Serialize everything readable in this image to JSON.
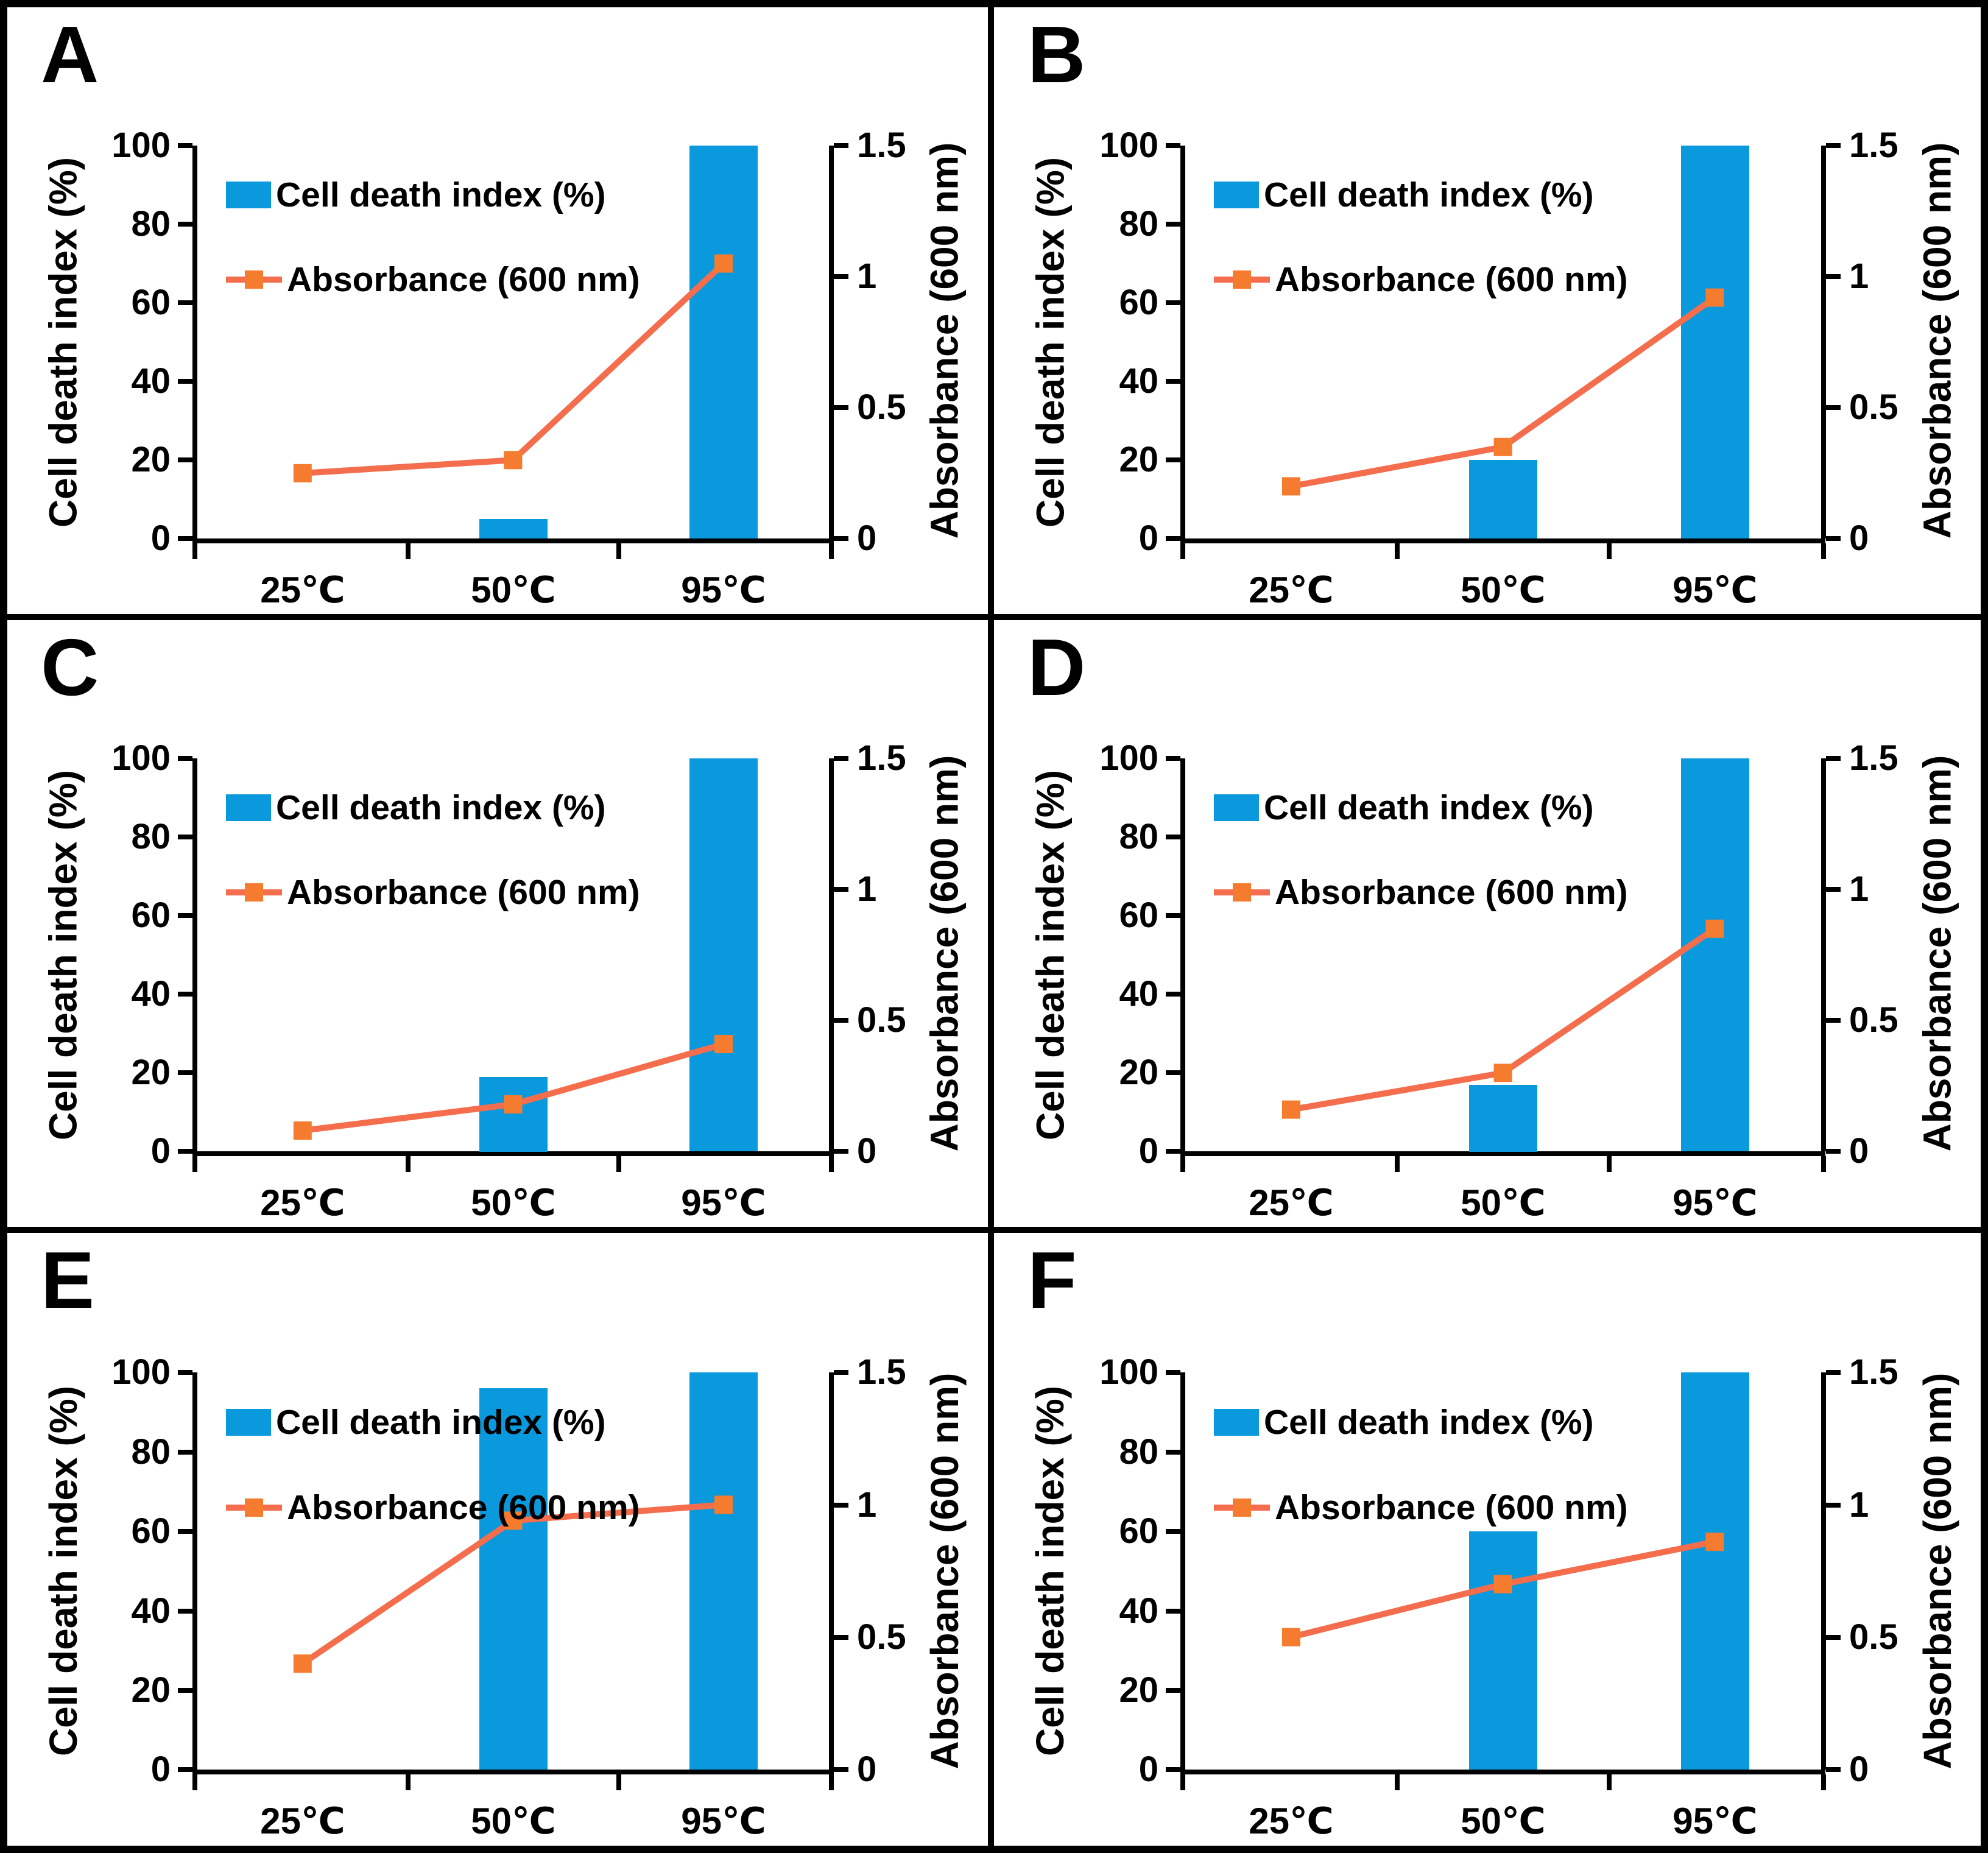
{
  "colors": {
    "bar_blue": "#0a99dc",
    "line_coral": "#f46e4d",
    "marker_orange": "#f57c2e",
    "axis_black": "#000000",
    "background": "#ffffff"
  },
  "axes": {
    "left_title": "Cell death index (%)",
    "right_title": "Absorbance (600 nm)",
    "left_tick_labels": [
      "0",
      "20",
      "40",
      "60",
      "80",
      "100"
    ],
    "left_tick_values": [
      0,
      20,
      40,
      60,
      80,
      100
    ],
    "right_tick_labels": [
      "0",
      "0.5",
      "1",
      "1.5"
    ],
    "right_tick_values": [
      0,
      0.5,
      1,
      1.5
    ],
    "left_range": [
      0,
      100
    ],
    "right_range": [
      0,
      1.5
    ],
    "categories": [
      "25℃",
      "50℃",
      "95℃"
    ]
  },
  "legend": {
    "bar_label": "Cell death index (%)",
    "line_label": "Absorbance (600 nm)"
  },
  "chart_data": [
    {
      "panel": "A",
      "type": "bar+line",
      "categories": [
        "25℃",
        "50℃",
        "95℃"
      ],
      "series": [
        {
          "name": "Cell death index (%)",
          "axis": "left",
          "values": [
            0,
            5,
            100
          ]
        },
        {
          "name": "Absorbance (600 nm)",
          "axis": "right",
          "values": [
            0.25,
            0.3,
            1.05
          ]
        }
      ],
      "ylim_left": [
        0,
        100
      ],
      "ylim_right": [
        0,
        1.5
      ]
    },
    {
      "panel": "B",
      "type": "bar+line",
      "categories": [
        "25℃",
        "50℃",
        "95℃"
      ],
      "series": [
        {
          "name": "Cell death index (%)",
          "axis": "left",
          "values": [
            0,
            20,
            100
          ]
        },
        {
          "name": "Absorbance (600 nm)",
          "axis": "right",
          "values": [
            0.2,
            0.35,
            0.92
          ]
        }
      ],
      "ylim_left": [
        0,
        100
      ],
      "ylim_right": [
        0,
        1.5
      ]
    },
    {
      "panel": "C",
      "type": "bar+line",
      "categories": [
        "25℃",
        "50℃",
        "95℃"
      ],
      "series": [
        {
          "name": "Cell death index (%)",
          "axis": "left",
          "values": [
            0,
            19,
            100
          ]
        },
        {
          "name": "Absorbance (600 nm)",
          "axis": "right",
          "values": [
            0.08,
            0.18,
            0.41
          ]
        }
      ],
      "ylim_left": [
        0,
        100
      ],
      "ylim_right": [
        0,
        1.5
      ]
    },
    {
      "panel": "D",
      "type": "bar+line",
      "categories": [
        "25℃",
        "50℃",
        "95℃"
      ],
      "series": [
        {
          "name": "Cell death index (%)",
          "axis": "left",
          "values": [
            0,
            17,
            100
          ]
        },
        {
          "name": "Absorbance (600 nm)",
          "axis": "right",
          "values": [
            0.16,
            0.3,
            0.85
          ]
        }
      ],
      "ylim_left": [
        0,
        100
      ],
      "ylim_right": [
        0,
        1.5
      ]
    },
    {
      "panel": "E",
      "type": "bar+line",
      "categories": [
        "25℃",
        "50℃",
        "95℃"
      ],
      "series": [
        {
          "name": "Cell death index (%)",
          "axis": "left",
          "values": [
            0,
            96,
            100
          ]
        },
        {
          "name": "Absorbance (600 nm)",
          "axis": "right",
          "values": [
            0.4,
            0.94,
            1.0
          ]
        }
      ],
      "ylim_left": [
        0,
        100
      ],
      "ylim_right": [
        0,
        1.5
      ]
    },
    {
      "panel": "F",
      "type": "bar+line",
      "categories": [
        "25℃",
        "50℃",
        "95℃"
      ],
      "series": [
        {
          "name": "Cell death index (%)",
          "axis": "left",
          "values": [
            0,
            60,
            100
          ]
        },
        {
          "name": "Absorbance (600 nm)",
          "axis": "right",
          "values": [
            0.5,
            0.7,
            0.86
          ]
        }
      ],
      "ylim_left": [
        0,
        100
      ],
      "ylim_right": [
        0,
        1.5
      ]
    }
  ]
}
